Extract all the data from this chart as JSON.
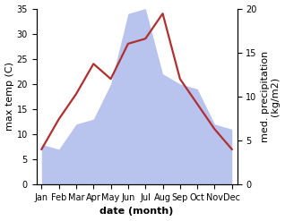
{
  "months": [
    "Jan",
    "Feb",
    "Mar",
    "Apr",
    "May",
    "Jun",
    "Jul",
    "Aug",
    "Sep",
    "Oct",
    "Nov",
    "Dec"
  ],
  "temperature": [
    7,
    13,
    18,
    24,
    21,
    28,
    29,
    34,
    21,
    16,
    11,
    7
  ],
  "precipitation_left": [
    8,
    7,
    12,
    13,
    20,
    34,
    35,
    22,
    20,
    19,
    12,
    11
  ],
  "temp_color": "#b03030",
  "precip_fill_color": "#b8c4ee",
  "left_ylim": [
    0,
    35
  ],
  "right_ylim": [
    0,
    20
  ],
  "left_yticks": [
    0,
    5,
    10,
    15,
    20,
    25,
    30,
    35
  ],
  "right_yticks": [
    0,
    5,
    10,
    15,
    20
  ],
  "ylabel_left": "max temp (C)",
  "ylabel_right": "med. precipitation\n(kg/m2)",
  "xlabel": "date (month)",
  "label_fontsize": 8,
  "tick_fontsize": 7,
  "background_color": "#ffffff"
}
